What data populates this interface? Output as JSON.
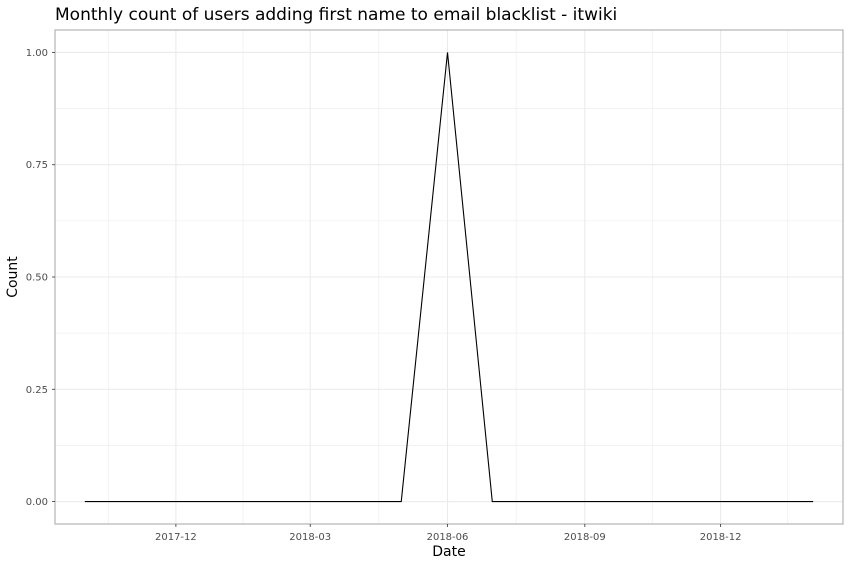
{
  "chart_data": {
    "type": "line",
    "title": "Monthly count of users adding first name to email blacklist - itwiki",
    "xlabel": "Date",
    "ylabel": "Count",
    "x": [
      "2017-10-01",
      "2017-11-01",
      "2017-12-01",
      "2018-01-01",
      "2018-02-01",
      "2018-03-01",
      "2018-04-01",
      "2018-05-01",
      "2018-06-01",
      "2018-07-01",
      "2018-08-01",
      "2018-09-01",
      "2018-10-01",
      "2018-11-01",
      "2018-12-01",
      "2019-01-01",
      "2019-02-01"
    ],
    "series": [
      {
        "values": [
          0,
          0,
          0,
          0,
          0,
          0,
          0,
          0,
          1,
          0,
          0,
          0,
          0,
          0,
          0,
          0,
          0
        ],
        "color": "#000000"
      }
    ],
    "xlim": [
      "2017-09-11",
      "2019-02-21"
    ],
    "ylim": [
      -0.05,
      1.05
    ],
    "x_ticks": [
      "2017-12-01",
      "2018-03-01",
      "2018-06-01",
      "2018-09-01",
      "2018-12-01"
    ],
    "x_tick_labels": [
      "2017-12",
      "2018-03",
      "2018-06",
      "2018-09",
      "2018-12"
    ],
    "y_ticks": [
      0,
      0.25,
      0.5,
      0.75,
      1
    ],
    "y_tick_labels": [
      "0.00",
      "0.25",
      "0.50",
      "0.75",
      "1.00"
    ],
    "grid": true,
    "legend": "none",
    "colors": {
      "grid": "#ebebeb",
      "panel_border": "#b3b3b3",
      "line": "#000000"
    }
  }
}
